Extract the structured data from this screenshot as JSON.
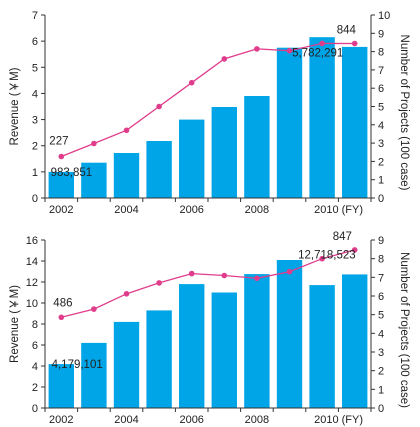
{
  "chart_data": [
    {
      "type": "bar",
      "categories": [
        "2002",
        "2003",
        "2004",
        "2005",
        "2006",
        "2007",
        "2008",
        "2009",
        "2010",
        "2011"
      ],
      "x_tick_labels": [
        "2002",
        "2004",
        "2006",
        "2008",
        "2010 (FY)"
      ],
      "ylabel": "Revenue (￥M)",
      "y2label": "Number of Projects (100 case)",
      "ylim": [
        0,
        7
      ],
      "y2lim": [
        0,
        10
      ],
      "yticks": [
        0,
        1,
        2,
        3,
        4,
        5,
        6,
        7
      ],
      "y2ticks": [
        0,
        1,
        2,
        3,
        4,
        5,
        6,
        7,
        8,
        9,
        10
      ],
      "bar_color": "#00a5e8",
      "line_color": "#e03c8c",
      "series": [
        {
          "values": [
            1.0,
            1.35,
            1.72,
            2.18,
            3.0,
            3.48,
            3.9,
            5.75,
            6.15,
            5.78
          ]
        },
        {
          "axis": "right",
          "values": [
            2.27,
            2.98,
            3.7,
            5.0,
            6.3,
            7.6,
            8.15,
            8.05,
            8.45,
            8.44
          ]
        }
      ],
      "annotations": [
        "227",
        "983,851",
        "844",
        "5,782,291"
      ]
    },
    {
      "type": "bar",
      "categories": [
        "2002",
        "2003",
        "2004",
        "2005",
        "2006",
        "2007",
        "2008",
        "2009",
        "2010",
        "2011"
      ],
      "x_tick_labels": [
        "2002",
        "2004",
        "2006",
        "2008",
        "2010 (FY)"
      ],
      "ylabel": "Revenue (￥M)",
      "y2label": "Number of Projects (100 case)",
      "ylim": [
        0,
        16
      ],
      "y2lim": [
        0,
        9
      ],
      "yticks": [
        0,
        2,
        4,
        6,
        8,
        10,
        12,
        14,
        16
      ],
      "y2ticks": [
        0,
        1,
        2,
        3,
        4,
        5,
        6,
        7,
        8,
        9
      ],
      "bar_color": "#00a5e8",
      "line_color": "#e03c8c",
      "series": [
        {
          "values": [
            4.18,
            6.2,
            8.2,
            9.3,
            11.8,
            11.0,
            12.75,
            14.1,
            11.7,
            12.72
          ]
        },
        {
          "axis": "right",
          "values": [
            4.86,
            5.3,
            6.12,
            6.7,
            7.2,
            7.1,
            6.95,
            7.3,
            8.0,
            8.47
          ]
        }
      ],
      "annotations": [
        "486",
        "4,179,101",
        "847",
        "12,718,523"
      ]
    }
  ]
}
